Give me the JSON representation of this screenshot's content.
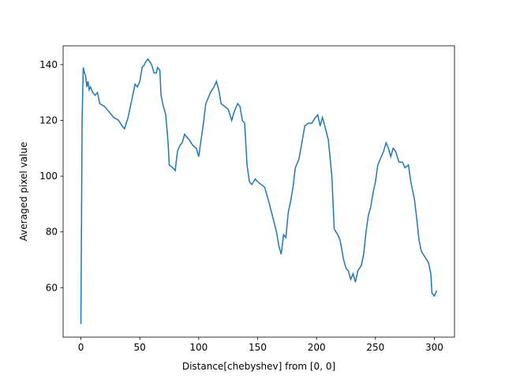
{
  "chart_data": {
    "type": "line",
    "xlabel": "Distance[chebyshev] from [0, 0]",
    "ylabel": "Averaged pixel value",
    "xlim": [
      -15.1,
      317.1
    ],
    "ylim": [
      42.25,
      146.75
    ],
    "xticks": [
      0,
      50,
      100,
      150,
      200,
      250,
      300
    ],
    "yticks": [
      60,
      80,
      100,
      120,
      140
    ],
    "series": [
      {
        "color": "#1f77b4",
        "x": [
          0,
          1,
          2,
          3,
          4,
          5,
          6,
          7,
          8,
          10,
          12,
          14,
          16,
          20,
          24,
          28,
          32,
          35,
          37,
          40,
          43,
          46,
          48,
          50,
          52,
          54,
          55,
          57,
          60,
          62,
          64,
          65,
          67,
          68,
          70,
          72,
          74,
          75,
          78,
          80,
          82,
          84,
          86,
          88,
          90,
          92,
          95,
          98,
          100,
          102,
          104,
          106,
          108,
          110,
          113,
          115,
          117,
          119,
          122,
          125,
          128,
          130,
          133,
          135,
          137,
          139,
          141,
          143,
          145,
          148,
          150,
          153,
          156,
          160,
          163,
          166,
          168,
          170,
          172,
          174,
          176,
          178,
          180,
          182,
          185,
          188,
          190,
          193,
          196,
          199,
          201,
          203,
          205,
          207,
          210,
          213,
          215,
          218,
          220,
          223,
          225,
          227,
          229,
          231,
          233,
          235,
          238,
          240,
          242,
          244,
          246,
          248,
          250,
          252,
          254,
          257,
          259,
          261,
          263,
          265,
          267,
          270,
          273,
          275,
          278,
          280,
          283,
          285,
          287,
          289,
          292,
          295,
          297,
          298,
          300,
          302
        ],
        "values": [
          47,
          120,
          139,
          137,
          136,
          132,
          134,
          131,
          132,
          130,
          129,
          130,
          126,
          125,
          123,
          121,
          120,
          118,
          117,
          121,
          127,
          133,
          132,
          134,
          139,
          140,
          141,
          142,
          140,
          137,
          137,
          139,
          138,
          129,
          125,
          122,
          112,
          104,
          103,
          102,
          109,
          111,
          112,
          115,
          114,
          113,
          111,
          110,
          107,
          113,
          119,
          126,
          128,
          130,
          132,
          134,
          131,
          126,
          125,
          124,
          120,
          123,
          126,
          125,
          120,
          119,
          104,
          98,
          97,
          99,
          98,
          97,
          96,
          90,
          85,
          80,
          75,
          72,
          79,
          78,
          87,
          91,
          96,
          103,
          106,
          113,
          118,
          119,
          119,
          121,
          122,
          118,
          121,
          118,
          113,
          100,
          81,
          79,
          77,
          70,
          67,
          66,
          63,
          65,
          62,
          66,
          68,
          72,
          80,
          86,
          89,
          94,
          98,
          104,
          106,
          109,
          112,
          110,
          107,
          110,
          109,
          105,
          105,
          103,
          104,
          98,
          92,
          85,
          77,
          73,
          71,
          69,
          65,
          58,
          57,
          59
        ]
      }
    ]
  }
}
